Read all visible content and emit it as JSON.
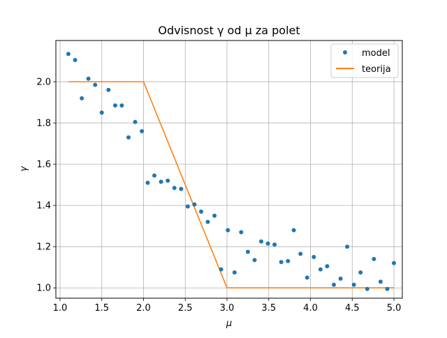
{
  "chart_data": {
    "type": "scatter+line",
    "title": "Odvisnost γ od μ za polet",
    "xlabel": "μ",
    "ylabel": "γ",
    "xlim": [
      0.95,
      5.1
    ],
    "ylim": [
      0.95,
      2.2
    ],
    "xticks": [
      1.0,
      1.5,
      2.0,
      2.5,
      3.0,
      3.5,
      4.0,
      4.5,
      5.0
    ],
    "xtick_labels": [
      "1.0",
      "1.5",
      "2.0",
      "2.5",
      "3.0",
      "3.5",
      "4.0",
      "4.5",
      "5.0"
    ],
    "yticks": [
      1.0,
      1.2,
      1.4,
      1.6,
      1.8,
      2.0
    ],
    "ytick_labels": [
      "1.0",
      "1.2",
      "1.4",
      "1.6",
      "1.8",
      "2.0"
    ],
    "grid": true,
    "legend_position": "top-right",
    "series": [
      {
        "name": "model",
        "kind": "scatter",
        "color": "#1f77b4",
        "x": [
          1.1,
          1.18,
          1.26,
          1.34,
          1.42,
          1.5,
          1.58,
          1.66,
          1.74,
          1.82,
          1.9,
          1.98,
          2.05,
          2.13,
          2.21,
          2.29,
          2.37,
          2.45,
          2.53,
          2.61,
          2.69,
          2.77,
          2.85,
          2.93,
          3.01,
          3.09,
          3.17,
          3.25,
          3.33,
          3.41,
          3.49,
          3.57,
          3.65,
          3.73,
          3.8,
          3.88,
          3.96,
          4.04,
          4.12,
          4.2,
          4.28,
          4.36,
          4.44,
          4.52,
          4.6,
          4.68,
          4.76,
          4.84,
          4.92,
          5.0
        ],
        "y": [
          2.135,
          2.105,
          1.92,
          2.015,
          1.985,
          1.85,
          1.96,
          1.885,
          1.885,
          1.73,
          1.805,
          1.76,
          1.51,
          1.545,
          1.515,
          1.52,
          1.485,
          1.48,
          1.395,
          1.405,
          1.37,
          1.32,
          1.35,
          1.09,
          1.28,
          1.075,
          1.27,
          1.175,
          1.135,
          1.225,
          1.215,
          1.21,
          1.125,
          1.13,
          1.28,
          1.165,
          1.05,
          1.15,
          1.09,
          1.105,
          1.015,
          1.045,
          1.2,
          1.015,
          1.075,
          0.995,
          1.14,
          1.03,
          0.995,
          1.12
        ]
      },
      {
        "name": "teorija",
        "kind": "line",
        "color": "#ff7f0e",
        "x": [
          1.1,
          2.0,
          3.0,
          5.0
        ],
        "y": [
          2.0,
          2.0,
          1.0,
          1.0
        ]
      }
    ]
  }
}
